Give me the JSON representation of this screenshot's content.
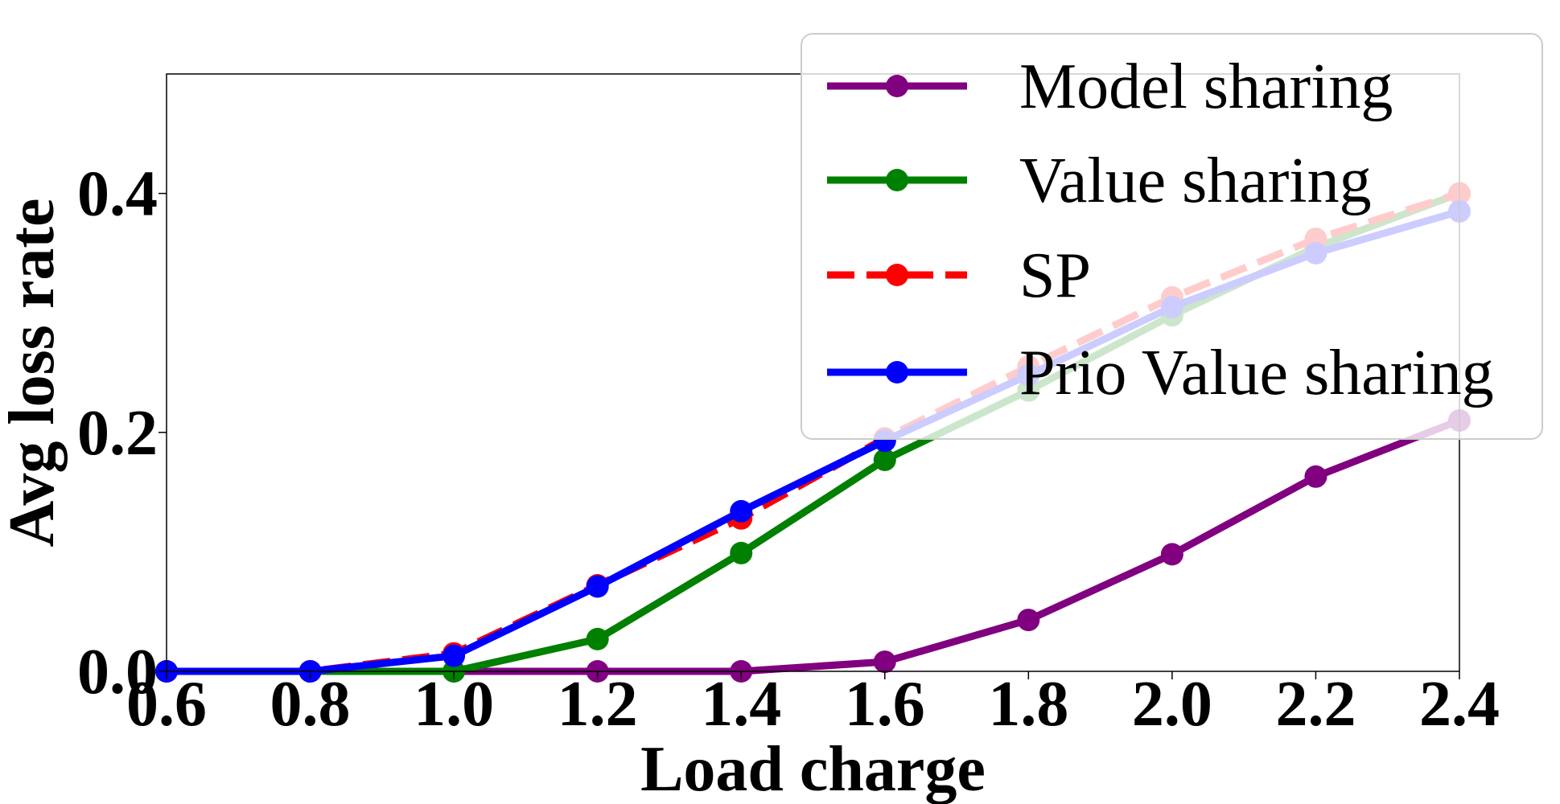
{
  "chart_data": {
    "type": "line",
    "title": "",
    "xlabel": "Load charge",
    "ylabel": "Avg loss rate",
    "x": [
      0.6,
      0.8,
      1.0,
      1.2,
      1.4,
      1.6,
      1.8,
      2.0,
      2.2,
      2.4
    ],
    "x_tick_labels": [
      "0.6",
      "0.8",
      "1.0",
      "1.2",
      "1.4",
      "1.6",
      "1.8",
      "2.0",
      "2.2",
      "2.4"
    ],
    "y_tick_labels": [
      "0.0",
      "0.2",
      "0.4"
    ],
    "y_ticks": [
      0.0,
      0.2,
      0.4
    ],
    "xlim": [
      0.6,
      2.4
    ],
    "ylim": [
      0.0,
      0.5
    ],
    "grid": false,
    "legend_position": "top-right",
    "series": [
      {
        "name": "Model sharing",
        "color": "#800080",
        "dash": "solid",
        "values": [
          0.0,
          0.0,
          0.0,
          0.0,
          0.0,
          0.008,
          0.043,
          0.098,
          0.163,
          0.21
        ]
      },
      {
        "name": "Value sharing",
        "color": "#008000",
        "dash": "solid",
        "values": [
          0.0,
          0.0,
          0.0,
          0.027,
          0.099,
          0.177,
          0.235,
          0.298,
          0.355,
          0.4
        ]
      },
      {
        "name": "SP",
        "color": "#ff0000",
        "dash": "dashed",
        "values": [
          0.0,
          0.0,
          0.015,
          0.072,
          0.128,
          0.195,
          0.255,
          0.313,
          0.362,
          0.4
        ]
      },
      {
        "name": "Prio Value sharing",
        "color": "#0000ff",
        "dash": "solid",
        "values": [
          0.0,
          0.0,
          0.013,
          0.071,
          0.134,
          0.193,
          0.248,
          0.305,
          0.35,
          0.385
        ]
      }
    ]
  }
}
